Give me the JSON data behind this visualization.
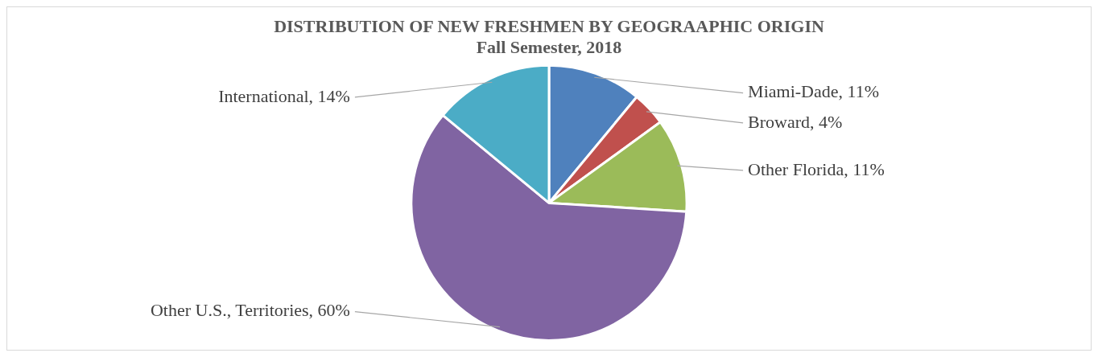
{
  "chart_data": {
    "type": "pie",
    "title": "DISTRIBUTION OF NEW FRESHMEN BY GEOGRAAPHIC ORIGIN",
    "subtitle": "Fall Semester, 2018",
    "categories": [
      "Miami-Dade",
      "Broward",
      "Other Florida",
      "Other U.S., Territories",
      "International"
    ],
    "values": [
      11,
      4,
      11,
      60,
      14
    ],
    "value_labels": [
      "11%",
      "4%",
      "11%",
      "60%",
      "14%"
    ],
    "colors": [
      "#4f81bd",
      "#c0504d",
      "#9bbb59",
      "#8064a2",
      "#4bacc6"
    ],
    "legend": false
  }
}
